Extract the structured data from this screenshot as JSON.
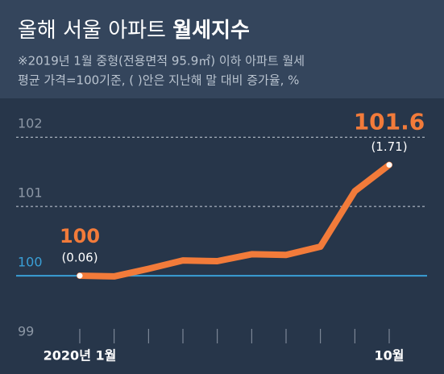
{
  "chart_data": {
    "type": "line",
    "title": "올해 서울 아파트",
    "title_bold": "월세지수",
    "subtitle": [
      "※2019년 1월 중형(전용면적 95.9㎡) 이하 아파트 월세",
      "평균 가격=100기준, ( )안은 지난해 말 대비 증가율, %"
    ],
    "categories": [
      "2020년 1월",
      null,
      null,
      null,
      null,
      null,
      null,
      null,
      null,
      "10월"
    ],
    "series": [
      {
        "name": "월세지수",
        "color": "#f27b3a",
        "values": [
          100,
          99.99,
          100.1,
          100.22,
          100.21,
          100.31,
          100.3,
          100.42,
          101.22,
          101.6
        ],
        "value_labels": [
          "100",
          null,
          null,
          null,
          null,
          null,
          null,
          null,
          null,
          "101.6"
        ],
        "change_labels": [
          "(0.06)",
          null,
          null,
          null,
          null,
          null,
          null,
          null,
          null,
          "(1.71)"
        ]
      }
    ],
    "ylim": [
      99,
      102.2
    ],
    "yticks": [
      99,
      100,
      101,
      102
    ],
    "grid": true,
    "reference_line": 100,
    "reference_color": "#3a9fd6"
  }
}
